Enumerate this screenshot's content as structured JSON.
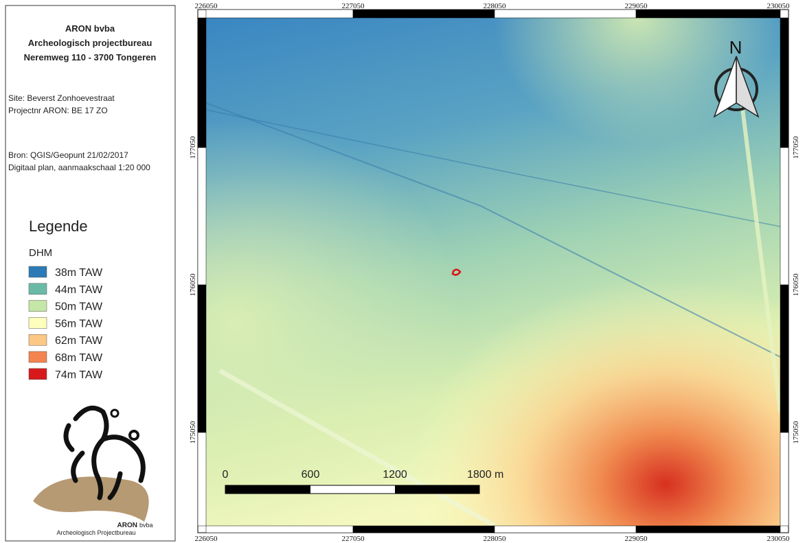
{
  "header": {
    "company": "ARON bvba",
    "department": "Archeologisch projectbureau",
    "address": "Neremweg 110 - 3700 Tongeren"
  },
  "info": {
    "site": "Site: Beverst Zonhoevestraat",
    "project": "Projectnr ARON: BE 17 ZO",
    "source": "Bron: QGIS/Geopunt 21/02/2017",
    "scale": "Digitaal plan, aanmaakschaal 1:20 000"
  },
  "legend": {
    "title": "Legende",
    "layer": "DHM",
    "items": [
      {
        "label": "38m TAW",
        "color": "#2c7bb6"
      },
      {
        "label": "44m TAW",
        "color": "#6bbaa7"
      },
      {
        "label": "50m TAW",
        "color": "#c4e6a6"
      },
      {
        "label": "56m TAW",
        "color": "#fefebd"
      },
      {
        "label": "62m TAW",
        "color": "#fdc785"
      },
      {
        "label": "68m TAW",
        "color": "#f4844f"
      },
      {
        "label": "74m TAW",
        "color": "#d7191c"
      }
    ]
  },
  "logo": {
    "name": "ARON",
    "suffix": "bvba",
    "subtitle": "Archeologisch Projectbureau"
  },
  "map": {
    "x_labels": [
      "226050",
      "227050",
      "228050",
      "229050",
      "230050"
    ],
    "y_labels": [
      "177050",
      "176050",
      "175050"
    ],
    "north": "N",
    "scale_bar": [
      "0",
      "600",
      "1200",
      "1800 m"
    ]
  }
}
